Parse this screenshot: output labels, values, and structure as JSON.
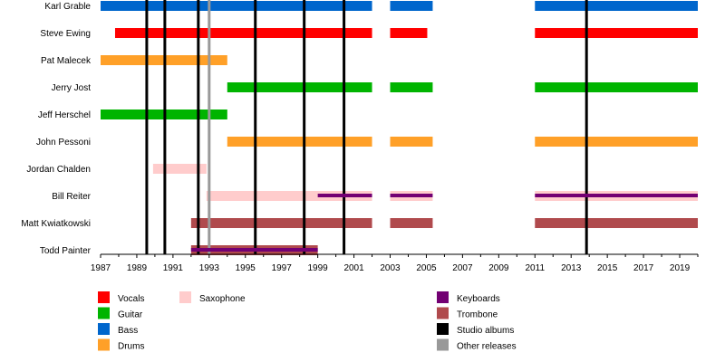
{
  "chart_data": {
    "type": "timeline",
    "xlim": [
      1987,
      2020
    ],
    "xticks": [
      1987,
      1989,
      1991,
      1993,
      1995,
      1997,
      1999,
      2001,
      2003,
      2005,
      2007,
      2009,
      2011,
      2013,
      2015,
      2017,
      2019
    ],
    "colors": {
      "Vocals": "#ff0000",
      "Guitar": "#00b400",
      "Bass": "#0066cc",
      "Drums": "#ffa028",
      "Saxophone": "#ffcccc",
      "Keyboards": "#730073",
      "Trombone": "#b04a4d",
      "Studio albums": "#000000",
      "Other releases": "#999999"
    },
    "members": [
      {
        "name": "Karl Grable",
        "bars": [
          {
            "role": "Bass",
            "start": 1987,
            "end": 2002
          },
          {
            "role": "Bass",
            "start": 2003,
            "end": 2005.35
          },
          {
            "role": "Bass",
            "start": 2011,
            "end": 2020
          }
        ]
      },
      {
        "name": "Steve Ewing",
        "bars": [
          {
            "role": "Vocals",
            "start": 1987.8,
            "end": 2002
          },
          {
            "role": "Vocals",
            "start": 2003,
            "end": 2005.05
          },
          {
            "role": "Vocals",
            "start": 2011,
            "end": 2020
          }
        ]
      },
      {
        "name": "Pat Malecek",
        "bars": [
          {
            "role": "Drums",
            "start": 1987,
            "end": 1994
          }
        ]
      },
      {
        "name": "Jerry Jost",
        "bars": [
          {
            "role": "Guitar",
            "start": 1994,
            "end": 2002
          },
          {
            "role": "Guitar",
            "start": 2003,
            "end": 2005.35
          },
          {
            "role": "Guitar",
            "start": 2011,
            "end": 2020
          }
        ]
      },
      {
        "name": "Jeff Herschel",
        "bars": [
          {
            "role": "Guitar",
            "start": 1987,
            "end": 1994
          }
        ]
      },
      {
        "name": "John Pessoni",
        "bars": [
          {
            "role": "Drums",
            "start": 1994,
            "end": 2002
          },
          {
            "role": "Drums",
            "start": 2003,
            "end": 2005.35
          },
          {
            "role": "Drums",
            "start": 2011,
            "end": 2020
          }
        ]
      },
      {
        "name": "Jordan Chalden",
        "bars": [
          {
            "role": "Saxophone",
            "start": 1989.9,
            "end": 1992.85
          }
        ]
      },
      {
        "name": "Bill Reiter",
        "bars": [
          {
            "role": "Saxophone",
            "start": 1992.85,
            "end": 2002
          },
          {
            "role": "Saxophone",
            "start": 2003,
            "end": 2005.35
          },
          {
            "role": "Saxophone",
            "start": 2011,
            "end": 2020
          },
          {
            "role": "Keyboards",
            "start": 1999,
            "end": 2002,
            "thin": true
          },
          {
            "role": "Keyboards",
            "start": 2003,
            "end": 2005.35,
            "thin": true
          },
          {
            "role": "Keyboards",
            "start": 2011,
            "end": 2020,
            "thin": true
          }
        ]
      },
      {
        "name": "Matt Kwiatkowski",
        "bars": [
          {
            "role": "Trombone",
            "start": 1992,
            "end": 2002
          },
          {
            "role": "Trombone",
            "start": 2003,
            "end": 2005.35
          },
          {
            "role": "Trombone",
            "start": 2011,
            "end": 2020
          }
        ]
      },
      {
        "name": "Todd Painter",
        "bars": [
          {
            "role": "Trombone",
            "start": 1992,
            "end": 1999
          },
          {
            "role": "Keyboards",
            "start": 1992,
            "end": 1999,
            "thin": true
          }
        ]
      }
    ],
    "studio_albums": [
      1989.55,
      1990.55,
      1992.4,
      1995.55,
      1998.25,
      2000.45,
      2013.85
    ],
    "other_releases": [
      1993.0
    ],
    "legend": [
      {
        "label": "Vocals",
        "col": 0,
        "row": 0
      },
      {
        "label": "Guitar",
        "col": 0,
        "row": 1
      },
      {
        "label": "Bass",
        "col": 0,
        "row": 2
      },
      {
        "label": "Drums",
        "col": 0,
        "row": 3
      },
      {
        "label": "Saxophone",
        "col": 1,
        "row": 0
      },
      {
        "label": "Keyboards",
        "col": 2,
        "row": 0
      },
      {
        "label": "Trombone",
        "col": 2,
        "row": 1
      },
      {
        "label": "Studio albums",
        "col": 2,
        "row": 2
      },
      {
        "label": "Other releases",
        "col": 2,
        "row": 3
      }
    ],
    "legend_placement": "bottom"
  }
}
